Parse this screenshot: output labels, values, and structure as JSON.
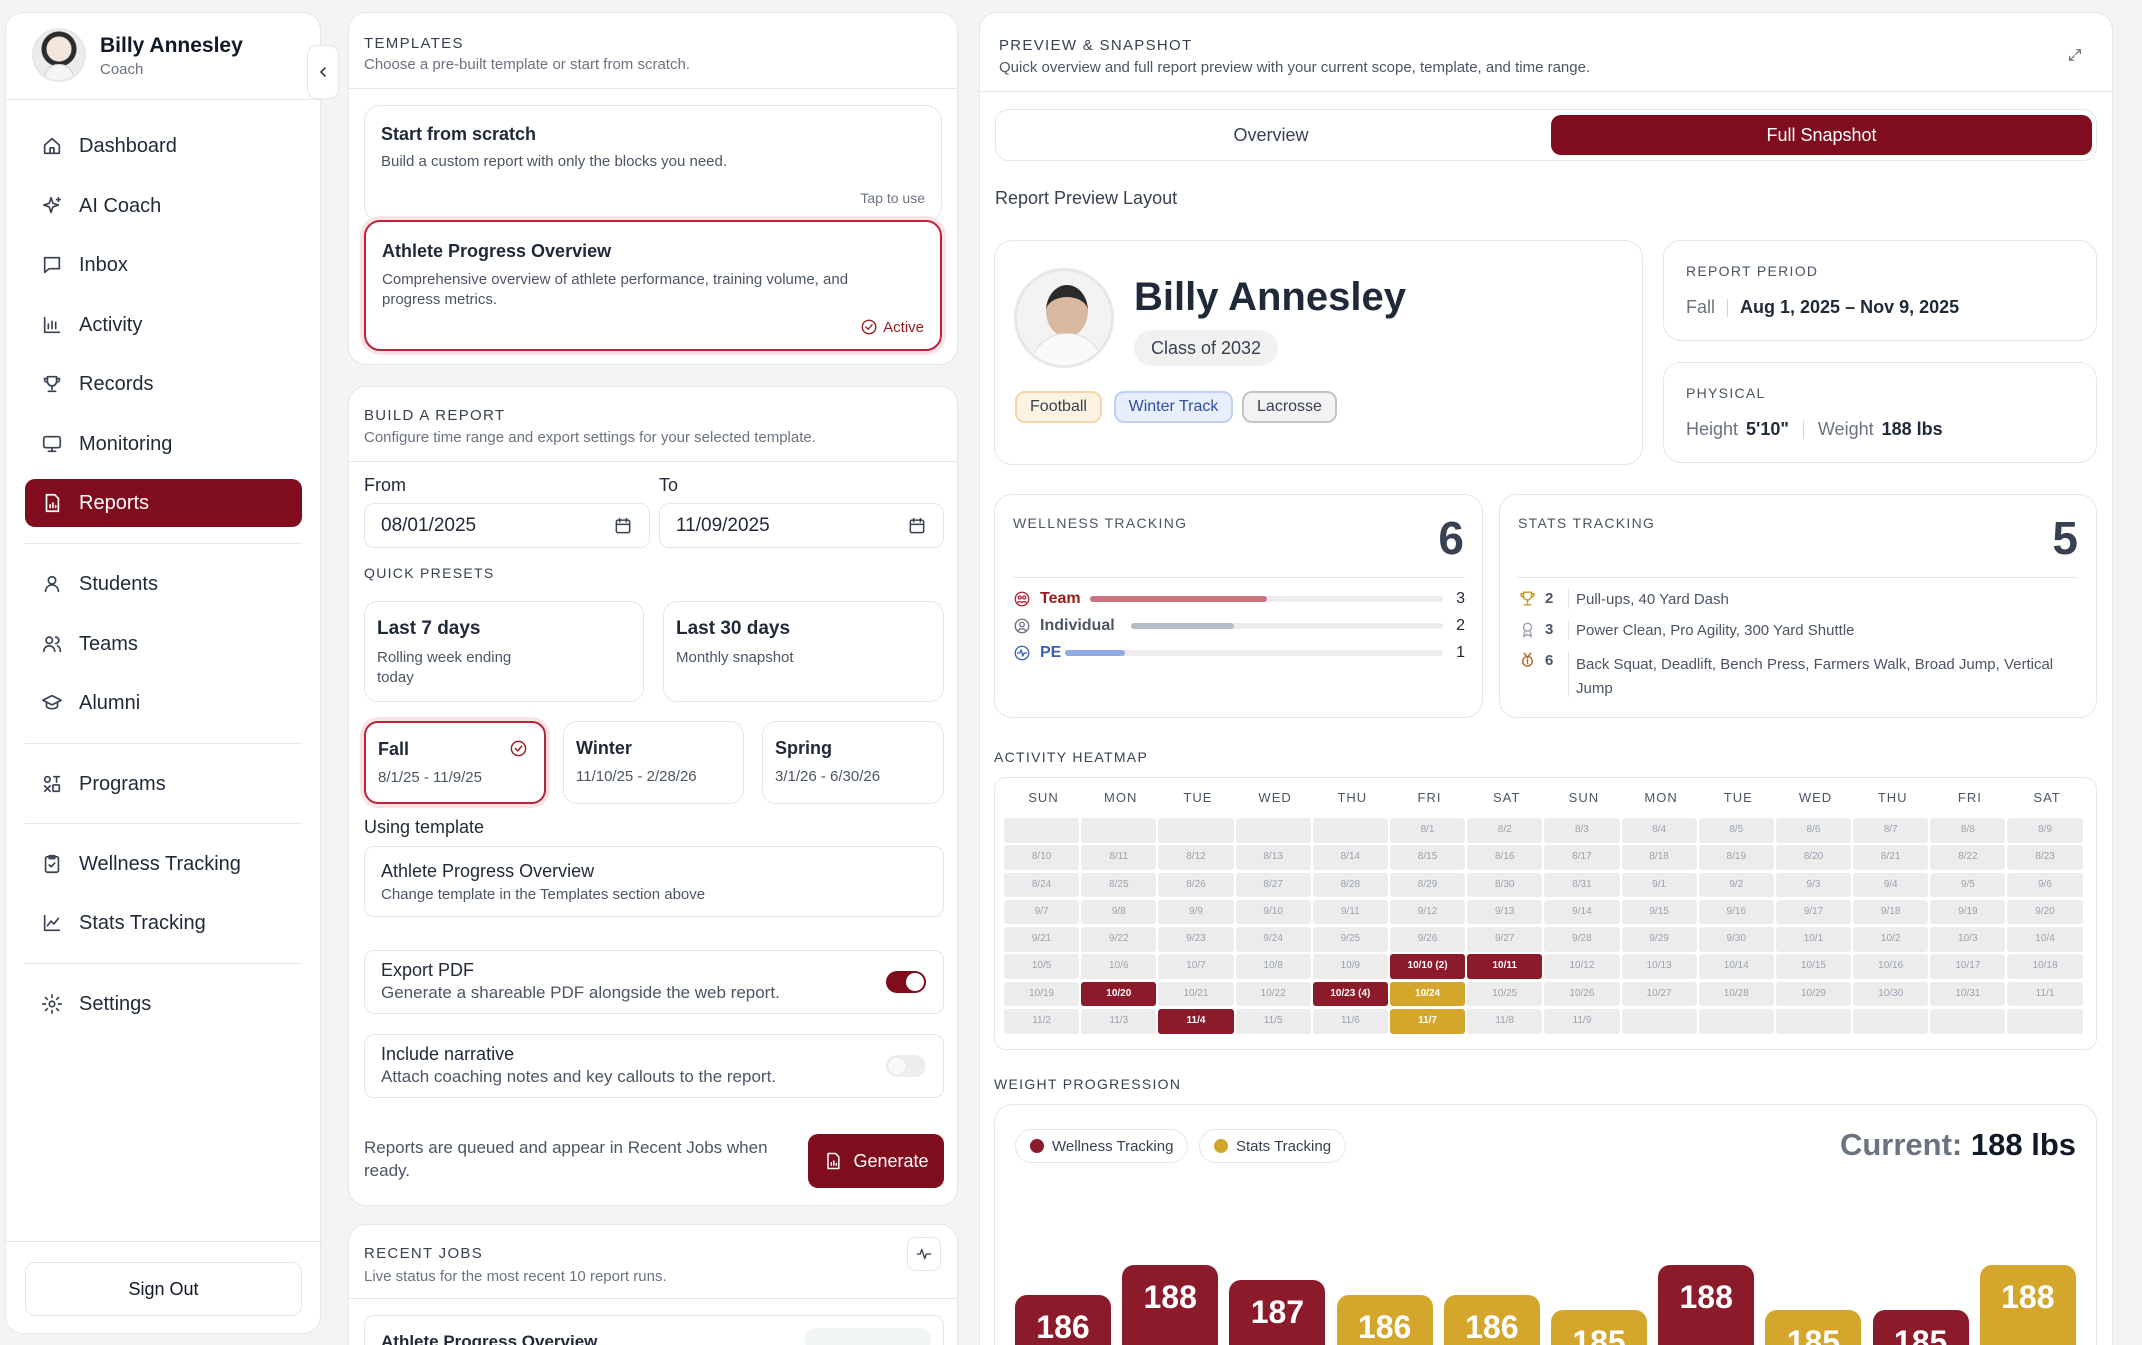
{
  "user": {
    "name": "Billy Annesley",
    "role": "Coach"
  },
  "nav": {
    "dashboard": "Dashboard",
    "ai_coach": "AI Coach",
    "inbox": "Inbox",
    "activity": "Activity",
    "records": "Records",
    "monitoring": "Monitoring",
    "reports": "Reports",
    "students": "Students",
    "teams": "Teams",
    "alumni": "Alumni",
    "programs": "Programs",
    "wellness": "Wellness Tracking",
    "stats": "Stats Tracking",
    "settings": "Settings",
    "sign_out": "Sign Out"
  },
  "templates": {
    "title": "TEMPLATES",
    "subtitle": "Choose a pre-built template or start from scratch.",
    "scratch": {
      "title": "Start from scratch",
      "desc": "Build a custom report with only the blocks you need.",
      "hint": "Tap to use"
    },
    "athlete": {
      "title": "Athlete Progress Overview",
      "desc": "Comprehensive overview of athlete performance, training volume, and progress metrics.",
      "status": "Active"
    }
  },
  "build": {
    "title": "BUILD A REPORT",
    "subtitle": "Configure time range and export settings for your selected template.",
    "from_label": "From",
    "to_label": "To",
    "from_value": "08/01/2025",
    "to_value": "11/09/2025",
    "quick_presets_label": "QUICK PRESETS",
    "last7": {
      "title": "Last 7 days",
      "desc": "Rolling week ending today"
    },
    "last30": {
      "title": "Last 30 days",
      "desc": "Monthly snapshot"
    },
    "fall": {
      "title": "Fall",
      "desc": "8/1/25 - 11/9/25"
    },
    "winter": {
      "title": "Winter",
      "desc": "11/10/25 - 2/28/26"
    },
    "spring": {
      "title": "Spring",
      "desc": "3/1/26 - 6/30/26"
    },
    "using_template_label": "Using template",
    "using_template": {
      "title": "Athlete Progress Overview",
      "desc": "Change template in the Templates section above"
    },
    "export_pdf": {
      "title": "Export PDF",
      "desc": "Generate a shareable PDF alongside the web report.",
      "on": true
    },
    "narrative": {
      "title": "Include narrative",
      "desc": "Attach coaching notes and key callouts to the report.",
      "on": false
    },
    "queue_note": "Reports are queued and appear in Recent Jobs when ready.",
    "generate": "Generate"
  },
  "recent_jobs": {
    "title": "RECENT JOBS",
    "subtitle": "Live status for the most recent 10 report runs.",
    "first_item": "Athlete Progress Overview"
  },
  "preview": {
    "title": "PREVIEW & SNAPSHOT",
    "subtitle": "Quick overview and full report preview with your current scope, template, and time range.",
    "tab_overview": "Overview",
    "tab_full": "Full Snapshot",
    "layout_label": "Report Preview Layout",
    "athlete_name": "Billy Annesley",
    "class_of": "Class of 2032",
    "sports": [
      "Football",
      "Winter Track",
      "Lacrosse"
    ],
    "report_period_label": "REPORT PERIOD",
    "period_season": "Fall",
    "period_range": "Aug 1, 2025 – Nov 9, 2025",
    "physical_label": "PHYSICAL",
    "height_label": "Height",
    "height_value": "5'10\"",
    "weight_label": "Weight",
    "weight_value": "188 lbs",
    "wellness": {
      "title": "WELLNESS TRACKING",
      "total": "6",
      "rows": [
        {
          "label": "Team",
          "value": "3",
          "fill": 0.5
        },
        {
          "label": "Individual",
          "value": "2",
          "fill": 0.33
        },
        {
          "label": "PE",
          "value": "1",
          "fill": 0.16
        }
      ]
    },
    "stats": {
      "title": "STATS TRACKING",
      "total": "5",
      "rows": [
        {
          "count": "2",
          "text": "Pull-ups, 40 Yard Dash",
          "icon": "trophy-gold-icon"
        },
        {
          "count": "3",
          "text": "Power Clean, Pro Agility, 300 Yard Shuttle",
          "icon": "medal-silver-icon"
        },
        {
          "count": "6",
          "text": "Back Squat, Deadlift, Bench Press, Farmers Walk, Broad Jump, Vertical Jump",
          "icon": "medal-bronze-icon"
        }
      ]
    },
    "heatmap": {
      "title": "ACTIVITY HEATMAP",
      "days": [
        "SUN",
        "MON",
        "TUE",
        "WED",
        "THU",
        "FRI",
        "SAT",
        "SUN",
        "MON",
        "TUE",
        "WED",
        "THU",
        "FRI",
        "SAT"
      ],
      "rows": [
        [
          "",
          "",
          "",
          "",
          "",
          "8/1",
          "8/2",
          "8/3",
          "8/4",
          "8/5",
          "8/6",
          "8/7",
          "8/8",
          "8/9"
        ],
        [
          "8/10",
          "8/11",
          "8/12",
          "8/13",
          "8/14",
          "8/15",
          "8/16",
          "8/17",
          "8/18",
          "8/19",
          "8/20",
          "8/21",
          "8/22",
          "8/23"
        ],
        [
          "8/24",
          "8/25",
          "8/26",
          "8/27",
          "8/28",
          "8/29",
          "8/30",
          "8/31",
          "9/1",
          "9/2",
          "9/3",
          "9/4",
          "9/5",
          "9/6"
        ],
        [
          "9/7",
          "9/8",
          "9/9",
          "9/10",
          "9/11",
          "9/12",
          "9/13",
          "9/14",
          "9/15",
          "9/16",
          "9/17",
          "9/18",
          "9/19",
          "9/20"
        ],
        [
          "9/21",
          "9/22",
          "9/23",
          "9/24",
          "9/25",
          "9/26",
          "9/27",
          "9/28",
          "9/29",
          "9/30",
          "10/1",
          "10/2",
          "10/3",
          "10/4"
        ],
        [
          "10/5",
          "10/6",
          "10/7",
          "10/8",
          "10/9",
          "10/10 (2)",
          "10/11",
          "10/12",
          "10/13",
          "10/14",
          "10/15",
          "10/16",
          "10/17",
          "10/18"
        ],
        [
          "10/19",
          "10/20",
          "10/21",
          "10/22",
          "10/23 (4)",
          "10/24",
          "10/25",
          "10/26",
          "10/27",
          "10/28",
          "10/29",
          "10/30",
          "10/31",
          "11/1"
        ],
        [
          "11/2",
          "11/3",
          "11/4",
          "11/5",
          "11/6",
          "11/7",
          "11/8",
          "11/9",
          "",
          "",
          "",
          "",
          "",
          ""
        ]
      ],
      "highlights": {
        "10/10 (2)": "r",
        "10/11": "r",
        "10/20": "r",
        "10/23 (4)": "r",
        "10/24": "y",
        "11/4": "r",
        "11/7": "y"
      }
    },
    "weight": {
      "title": "WEIGHT PROGRESSION",
      "legend_wellness": "Wellness Tracking",
      "legend_stats": "Stats Tracking",
      "current_label": "Current:",
      "current_value": "188 lbs",
      "colors": {
        "wellness": "#8b1a2b",
        "stats": "#d4a72c"
      }
    }
  },
  "chart_data": {
    "type": "bar",
    "title": "WEIGHT PROGRESSION",
    "series_by_bar": [
      "Wellness Tracking",
      "Wellness Tracking",
      "Wellness Tracking",
      "Stats Tracking",
      "Stats Tracking",
      "Stats Tracking",
      "Wellness Tracking",
      "Stats Tracking",
      "Wellness Tracking",
      "Stats Tracking"
    ],
    "values": [
      186,
      188,
      187,
      186,
      186,
      185,
      188,
      185,
      185,
      188
    ],
    "ylim": [
      184,
      189
    ]
  }
}
